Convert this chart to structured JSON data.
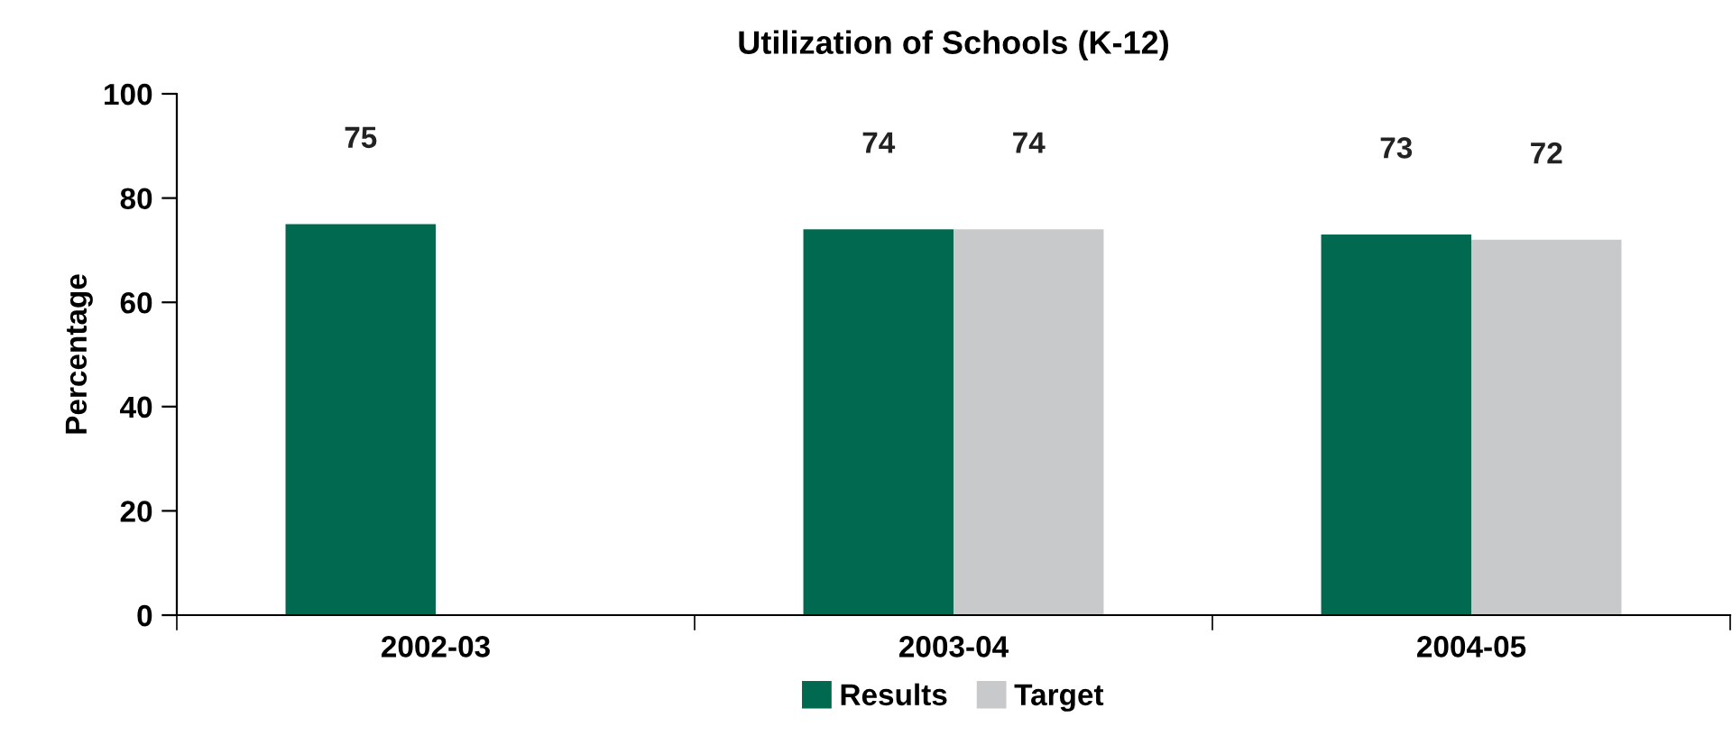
{
  "chart_data": {
    "type": "bar",
    "title": "Utilization of Schools (K-12)",
    "ylabel": "Percentage",
    "categories": [
      "2002-03",
      "2003-04",
      "2004-05"
    ],
    "series": [
      {
        "name": "Results",
        "color": "#006950",
        "values": [
          75,
          74,
          73
        ]
      },
      {
        "name": "Target",
        "color": "#c8c9cb",
        "values": [
          null,
          74,
          72
        ]
      }
    ],
    "ylim": [
      0,
      100
    ],
    "yticks": [
      0,
      20,
      40,
      60,
      80,
      100
    ],
    "data_labels": true,
    "legend": "bottom",
    "grid": false
  }
}
